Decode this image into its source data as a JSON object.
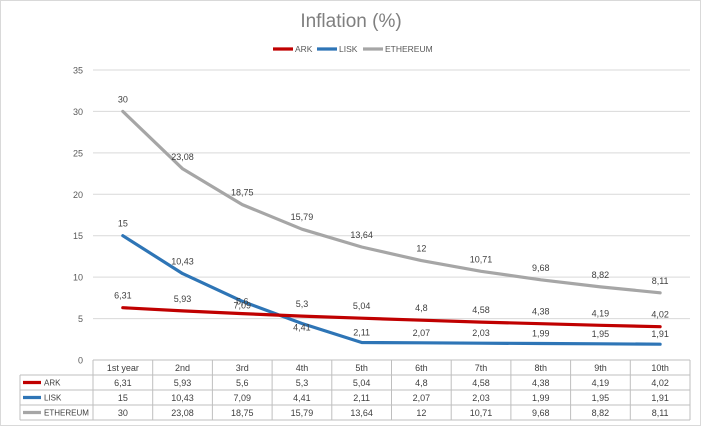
{
  "chart_data": {
    "type": "line",
    "title": "Inflation (%)",
    "xlabel": "",
    "ylabel": "",
    "categories": [
      "1st year",
      "2nd",
      "3rd",
      "4th",
      "5th",
      "6th",
      "7th",
      "8th",
      "9th",
      "10th"
    ],
    "ylim": [
      0,
      35
    ],
    "yticks": [
      0,
      5,
      10,
      15,
      20,
      25,
      30,
      35
    ],
    "grid": true,
    "legend": "top",
    "data_table": true,
    "series": [
      {
        "name": "ARK",
        "color": "#c00000",
        "values": [
          6.31,
          5.93,
          5.6,
          5.3,
          5.04,
          4.8,
          4.58,
          4.38,
          4.19,
          4.02
        ],
        "labels": [
          "6,31",
          "5,93",
          "5,6",
          "5,3",
          "5,04",
          "4,8",
          "4,58",
          "4,38",
          "4,19",
          "4,02"
        ]
      },
      {
        "name": "LISK",
        "color": "#2e75b6",
        "values": [
          15,
          10.43,
          7.09,
          4.41,
          2.11,
          2.07,
          2.03,
          1.99,
          1.95,
          1.91
        ],
        "labels": [
          "15",
          "10,43",
          "7,09",
          "4,41",
          "2,11",
          "2,07",
          "2,03",
          "1,99",
          "1,95",
          "1,91"
        ]
      },
      {
        "name": "ETHEREUM",
        "color": "#a6a6a6",
        "values": [
          30,
          23.08,
          18.75,
          15.79,
          13.64,
          12,
          10.71,
          9.68,
          8.82,
          8.11
        ],
        "labels": [
          "30",
          "23,08",
          "18,75",
          "15,79",
          "13,64",
          "12",
          "10,71",
          "9,68",
          "8,82",
          "8,11"
        ]
      }
    ]
  }
}
